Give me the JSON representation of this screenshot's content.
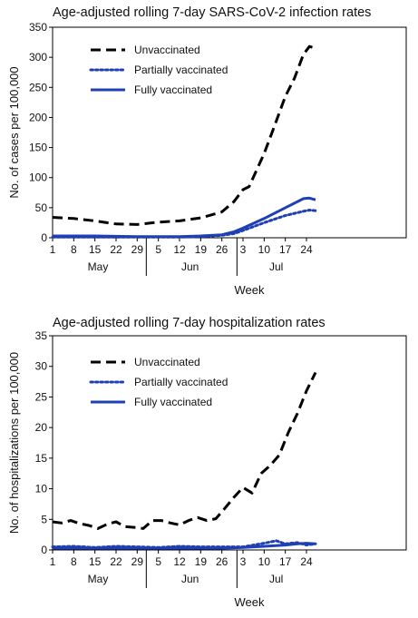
{
  "chart_data": [
    {
      "type": "line",
      "title": "Age-adjusted rolling 7-day SARS-CoV-2 infection rates",
      "xlabel": "Week",
      "ylabel": "No. of cases per 100,000",
      "ylim": [
        0,
        350
      ],
      "yticks": [
        0,
        50,
        100,
        150,
        200,
        250,
        300,
        350
      ],
      "xlim": [
        1,
        118
      ],
      "xtick_labels": [
        {
          "x": 1,
          "label": "1"
        },
        {
          "x": 8,
          "label": "8"
        },
        {
          "x": 15,
          "label": "15"
        },
        {
          "x": 22,
          "label": "22"
        },
        {
          "x": 29,
          "label": "29"
        },
        {
          "x": 36,
          "label": "5"
        },
        {
          "x": 43,
          "label": "12"
        },
        {
          "x": 50,
          "label": "19"
        },
        {
          "x": 57,
          "label": "26"
        },
        {
          "x": 64,
          "label": "3"
        },
        {
          "x": 71,
          "label": "10"
        },
        {
          "x": 78,
          "label": "17"
        },
        {
          "x": 85,
          "label": "24"
        }
      ],
      "months": [
        {
          "label": "May",
          "center": 16
        },
        {
          "label": "Jun",
          "center": 46.5
        },
        {
          "label": "Jul",
          "center": 75
        }
      ],
      "month_dividers": [
        32,
        62
      ],
      "legend_position": "top-left",
      "series": [
        {
          "name": "Unvaccinated",
          "color": "#000000",
          "style": "dashed",
          "x": [
            1,
            8,
            15,
            22,
            29,
            36,
            43,
            50,
            57,
            61,
            64,
            66,
            71,
            74,
            78,
            81,
            84,
            86,
            88
          ],
          "y": [
            34,
            32,
            28,
            23,
            22,
            26,
            28,
            33,
            43,
            60,
            80,
            85,
            140,
            180,
            235,
            265,
            305,
            318,
            315
          ]
        },
        {
          "name": "Partially vaccinated",
          "color": "#1f3fb4",
          "style": "dotted",
          "x": [
            1,
            15,
            29,
            43,
            50,
            57,
            61,
            64,
            71,
            78,
            84,
            86,
            88
          ],
          "y": [
            1,
            1,
            1,
            1,
            2,
            4,
            7,
            12,
            25,
            37,
            44,
            46,
            45
          ]
        },
        {
          "name": "Fully vaccinated",
          "color": "#1f3fb4",
          "style": "solid",
          "x": [
            1,
            15,
            29,
            43,
            50,
            57,
            61,
            64,
            71,
            78,
            84,
            86,
            88
          ],
          "y": [
            3,
            3,
            2,
            2,
            3,
            5,
            10,
            16,
            32,
            50,
            65,
            66,
            63
          ]
        }
      ]
    },
    {
      "type": "line",
      "title": "Age-adjusted rolling 7-day hospitalization rates",
      "xlabel": "Week",
      "ylabel": "No. of hospitalizations per 100,000",
      "ylim": [
        0,
        35
      ],
      "yticks": [
        0,
        5,
        10,
        15,
        20,
        25,
        30,
        35
      ],
      "xlim": [
        1,
        118
      ],
      "xtick_labels": [
        {
          "x": 1,
          "label": "1"
        },
        {
          "x": 8,
          "label": "8"
        },
        {
          "x": 15,
          "label": "15"
        },
        {
          "x": 22,
          "label": "22"
        },
        {
          "x": 29,
          "label": "29"
        },
        {
          "x": 36,
          "label": "5"
        },
        {
          "x": 43,
          "label": "12"
        },
        {
          "x": 50,
          "label": "19"
        },
        {
          "x": 57,
          "label": "26"
        },
        {
          "x": 64,
          "label": "3"
        },
        {
          "x": 71,
          "label": "10"
        },
        {
          "x": 78,
          "label": "17"
        },
        {
          "x": 85,
          "label": "24"
        }
      ],
      "months": [
        {
          "label": "May",
          "center": 16
        },
        {
          "label": "Jun",
          "center": 46.5
        },
        {
          "label": "Jul",
          "center": 75
        }
      ],
      "month_dividers": [
        32,
        62
      ],
      "legend_position": "top-left",
      "series": [
        {
          "name": "Unvaccinated",
          "color": "#000000",
          "style": "dashed",
          "x": [
            1,
            4,
            7,
            10,
            13,
            16,
            19,
            22,
            25,
            28,
            31,
            34,
            37,
            40,
            43,
            46,
            49,
            52,
            55,
            58,
            61,
            64,
            67,
            70,
            73,
            76,
            79,
            82,
            85,
            88
          ],
          "y": [
            4.6,
            4.4,
            4.8,
            4.3,
            4.0,
            3.5,
            4.2,
            4.6,
            3.8,
            3.7,
            3.5,
            4.8,
            4.8,
            4.4,
            4.1,
            4.8,
            5.3,
            4.8,
            5.1,
            6.8,
            8.6,
            10.2,
            9.3,
            12.5,
            13.8,
            15.5,
            19.2,
            22.3,
            26.0,
            29.0
          ]
        },
        {
          "name": "Partially vaccinated",
          "color": "#1f3fb4",
          "style": "dotted",
          "x": [
            1,
            8,
            15,
            22,
            29,
            36,
            43,
            50,
            57,
            64,
            71,
            75,
            78,
            82,
            85,
            88
          ],
          "y": [
            0.5,
            0.6,
            0.4,
            0.6,
            0.5,
            0.4,
            0.6,
            0.5,
            0.5,
            0.5,
            1.1,
            1.5,
            1.0,
            1.2,
            0.8,
            1.0
          ]
        },
        {
          "name": "Fully vaccinated",
          "color": "#1f3fb4",
          "style": "solid",
          "x": [
            1,
            15,
            29,
            43,
            57,
            64,
            71,
            78,
            82,
            85,
            88
          ],
          "y": [
            0.3,
            0.3,
            0.3,
            0.3,
            0.3,
            0.4,
            0.6,
            0.8,
            1.0,
            1.1,
            1.0
          ]
        }
      ]
    }
  ]
}
